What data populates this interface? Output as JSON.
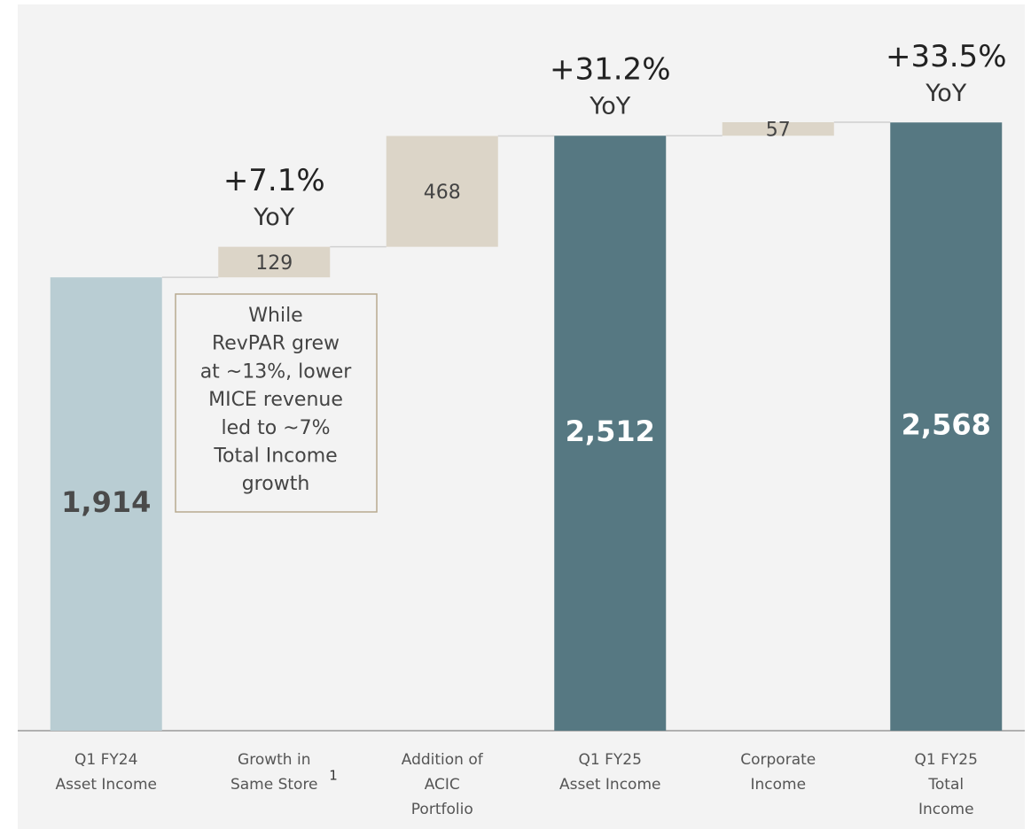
{
  "chart_data": {
    "type": "waterfall",
    "categories": [
      "Q1 FY24\nAsset Income",
      "Growth in\nSame Store",
      "Addition of\nACIC\nPortfolio",
      "Q1 FY25\nAsset Income",
      "Corporate\nIncome",
      "Q1 FY25\nTotal\nIncome"
    ],
    "category_footnotes": [
      null,
      "1",
      null,
      null,
      null,
      null
    ],
    "values": [
      1914,
      129,
      468,
      2512,
      57,
      2568
    ],
    "value_labels": [
      "1,914",
      "129",
      "468",
      "2,512",
      "57",
      "2,568"
    ],
    "measure": [
      "total",
      "relative",
      "relative",
      "total",
      "relative",
      "total"
    ],
    "colors": [
      "#b9cdd3",
      "#dcd5c8",
      "#dcd5c8",
      "#567882",
      "#dcd5c8",
      "#567882"
    ],
    "annotations": [
      {
        "category": "Growth in\nSame Store",
        "lines": [
          "+7.1%",
          "YoY"
        ]
      },
      {
        "category": "Q1 FY25\nAsset Income",
        "lines": [
          "+31.2%",
          "YoY"
        ]
      },
      {
        "category": "Q1 FY25\nTotal\nIncome",
        "lines": [
          "+33.5%",
          "YoY"
        ]
      }
    ],
    "note": {
      "lines": [
        "While",
        "RevPAR grew",
        "at ~13%, lower",
        "MICE revenue",
        "led to ~7%",
        "Total Income",
        "growth"
      ]
    }
  }
}
